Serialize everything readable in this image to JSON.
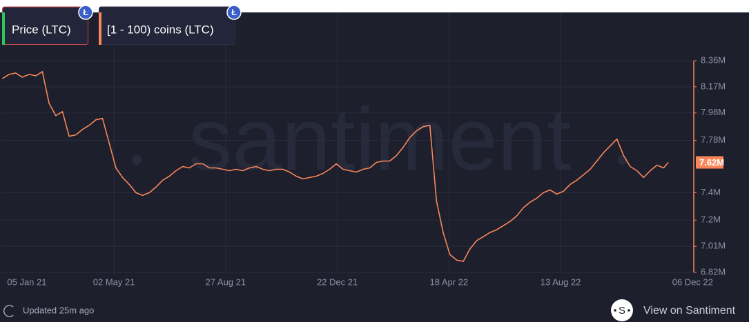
{
  "chart_data": {
    "type": "line",
    "watermark": "santiment",
    "legend_badge": "Ł",
    "hidden_series": [
      {
        "name": "Price (LTC)",
        "color": "#2fc65a"
      }
    ],
    "series": [
      {
        "name": "[1 - 100) coins (LTC)",
        "color": "#f9875a",
        "values": [
          8.23,
          8.26,
          8.27,
          8.24,
          8.26,
          8.25,
          8.28,
          8.05,
          7.96,
          7.99,
          7.81,
          7.82,
          7.86,
          7.89,
          7.93,
          7.94,
          7.76,
          7.58,
          7.51,
          7.46,
          7.4,
          7.38,
          7.4,
          7.44,
          7.49,
          7.52,
          7.56,
          7.59,
          7.58,
          7.61,
          7.61,
          7.58,
          7.58,
          7.57,
          7.56,
          7.57,
          7.56,
          7.58,
          7.59,
          7.57,
          7.56,
          7.57,
          7.57,
          7.55,
          7.52,
          7.5,
          7.51,
          7.52,
          7.54,
          7.57,
          7.61,
          7.57,
          7.56,
          7.55,
          7.57,
          7.58,
          7.62,
          7.63,
          7.63,
          7.67,
          7.73,
          7.8,
          7.85,
          7.88,
          7.89,
          7.34,
          7.11,
          6.95,
          6.91,
          6.9,
          6.99,
          7.05,
          7.08,
          7.11,
          7.13,
          7.16,
          7.19,
          7.23,
          7.29,
          7.33,
          7.36,
          7.4,
          7.42,
          7.39,
          7.41,
          7.46,
          7.49,
          7.53,
          7.57,
          7.63,
          7.69,
          7.74,
          7.79,
          7.67,
          7.59,
          7.56,
          7.51,
          7.56,
          7.6,
          7.58,
          7.62
        ]
      }
    ],
    "x": [
      "2021-01-05",
      "2021-01-12",
      "2021-01-19",
      "2021-01-26",
      "2021-02-02",
      "2021-02-09",
      "2021-02-16",
      "2021-02-23",
      "2021-03-02",
      "2021-03-09",
      "2021-03-16",
      "2021-03-23",
      "2021-03-30",
      "2021-04-06",
      "2021-04-13",
      "2021-04-20",
      "2021-04-27",
      "2021-05-04",
      "2021-05-11",
      "2021-05-18",
      "2021-05-25",
      "2021-06-01",
      "2021-06-08",
      "2021-06-15",
      "2021-06-22",
      "2021-06-29",
      "2021-07-06",
      "2021-07-13",
      "2021-07-20",
      "2021-07-27",
      "2021-08-03",
      "2021-08-10",
      "2021-08-17",
      "2021-08-24",
      "2021-08-31",
      "2021-09-07",
      "2021-09-14",
      "2021-09-21",
      "2021-09-28",
      "2021-10-05",
      "2021-10-12",
      "2021-10-19",
      "2021-10-26",
      "2021-11-02",
      "2021-11-09",
      "2021-11-16",
      "2021-11-23",
      "2021-11-30",
      "2021-12-07",
      "2021-12-14",
      "2021-12-21",
      "2021-12-28",
      "2022-01-04",
      "2022-01-11",
      "2022-01-18",
      "2022-01-25",
      "2022-02-01",
      "2022-02-08",
      "2022-02-15",
      "2022-02-22",
      "2022-03-01",
      "2022-03-08",
      "2022-03-15",
      "2022-03-22",
      "2022-03-29",
      "2022-04-05",
      "2022-04-12",
      "2022-04-19",
      "2022-04-26",
      "2022-05-03",
      "2022-05-10",
      "2022-05-17",
      "2022-05-24",
      "2022-05-31",
      "2022-06-07",
      "2022-06-14",
      "2022-06-21",
      "2022-06-28",
      "2022-07-05",
      "2022-07-12",
      "2022-07-19",
      "2022-07-26",
      "2022-08-02",
      "2022-08-09",
      "2022-08-16",
      "2022-08-23",
      "2022-08-30",
      "2022-09-06",
      "2022-09-13",
      "2022-09-20",
      "2022-09-27",
      "2022-10-04",
      "2022-10-11",
      "2022-10-18",
      "2022-10-25",
      "2022-11-01",
      "2022-11-08",
      "2022-11-15",
      "2022-11-22",
      "2022-11-29",
      "2022-12-04"
    ],
    "xlim": [
      "2021-01-04",
      "2022-12-06"
    ],
    "xticks": [
      {
        "value": "2021-01-05",
        "label": "05 Jan 21"
      },
      {
        "value": "2021-05-02",
        "label": "02 May 21"
      },
      {
        "value": "2021-08-27",
        "label": "27 Aug 21"
      },
      {
        "value": "2021-12-22",
        "label": "22 Dec 21"
      },
      {
        "value": "2022-04-18",
        "label": "18 Apr 22"
      },
      {
        "value": "2022-08-13",
        "label": "13 Aug 22"
      },
      {
        "value": "2022-12-06",
        "label": "06 Dec 22"
      }
    ],
    "ylim": [
      6.82,
      8.36
    ],
    "yticks": [
      {
        "value": 8.36,
        "label": "8.36M"
      },
      {
        "value": 8.17,
        "label": "8.17M"
      },
      {
        "value": 7.98,
        "label": "7.98M"
      },
      {
        "value": 7.78,
        "label": "7.78M"
      },
      {
        "value": 7.4,
        "label": "7.4M"
      },
      {
        "value": 7.2,
        "label": "7.2M"
      },
      {
        "value": 7.01,
        "label": "7.01M"
      },
      {
        "value": 6.82,
        "label": "6.82M"
      }
    ],
    "current": {
      "value": 7.62,
      "label": "7.62M"
    },
    "grid": true,
    "footer": {
      "updated": "Updated 25m ago",
      "logo_letter": "S",
      "link": "View on Santiment"
    }
  }
}
